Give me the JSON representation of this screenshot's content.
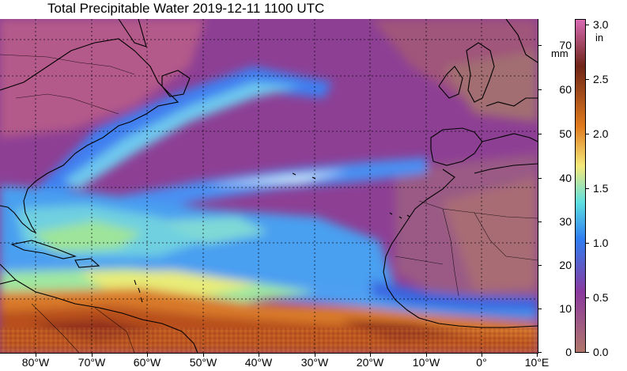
{
  "title": "Total Precipitable Water  2019-12-11 1100 UTC",
  "map": {
    "type": "heatmap",
    "variable": "Total Precipitable Water",
    "grid": true,
    "lon_range": [
      -87,
      10
    ],
    "lat_range": [
      -0.5,
      76
    ],
    "lon_ticks": [
      "80°W",
      "70°W",
      "60°W",
      "50°W",
      "40°W",
      "30°W",
      "20°W",
      "10°W",
      "0°",
      "10°E"
    ],
    "lat_ticks": [
      "0",
      "10",
      "20",
      "30",
      "40",
      "50",
      "60",
      "70"
    ],
    "lat_unit": "mm"
  },
  "colorbar": {
    "unit": "in",
    "ticks": [
      "0.0",
      "0.5",
      "1.0",
      "1.5",
      "2.0",
      "2.5",
      "3.0"
    ],
    "range": [
      0.0,
      3.0
    ],
    "colors": {
      "low": "#b0766a",
      "mid_low": "#8a3a9e",
      "mid": "#2f7df2",
      "mid_high": "#5ee0e0",
      "high_mid": "#f5e97a",
      "high": "#e07a1e",
      "very_high": "#6e2417",
      "max": "#d96bb4"
    }
  }
}
